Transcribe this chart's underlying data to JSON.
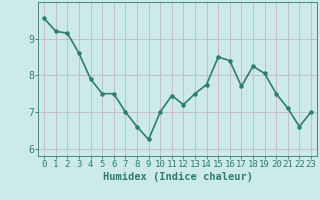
{
  "x": [
    0,
    1,
    2,
    3,
    4,
    5,
    6,
    7,
    8,
    9,
    10,
    11,
    12,
    13,
    14,
    15,
    16,
    17,
    18,
    19,
    20,
    21,
    22,
    23
  ],
  "y": [
    9.55,
    9.2,
    9.15,
    8.6,
    7.9,
    7.5,
    7.5,
    7.0,
    6.6,
    6.25,
    7.0,
    7.45,
    7.2,
    7.5,
    7.75,
    8.5,
    8.4,
    7.7,
    8.25,
    8.05,
    7.5,
    7.1,
    6.6,
    7.0
  ],
  "line_color": "#2e7d6e",
  "marker": "o",
  "marker_size": 2.2,
  "linewidth": 1.2,
  "xlabel": "Humidex (Indice chaleur)",
  "xlim": [
    -0.5,
    23.5
  ],
  "ylim": [
    5.8,
    10.0
  ],
  "yticks": [
    6,
    7,
    8,
    9
  ],
  "xticks": [
    0,
    1,
    2,
    3,
    4,
    5,
    6,
    7,
    8,
    9,
    10,
    11,
    12,
    13,
    14,
    15,
    16,
    17,
    18,
    19,
    20,
    21,
    22,
    23
  ],
  "bg_color": "#cdeaea",
  "grid_color": "#c8b8b8",
  "tick_color": "#2e7d6e",
  "label_color": "#2e7d6e",
  "font_size": 6.5,
  "xlabel_fontsize": 7.5
}
